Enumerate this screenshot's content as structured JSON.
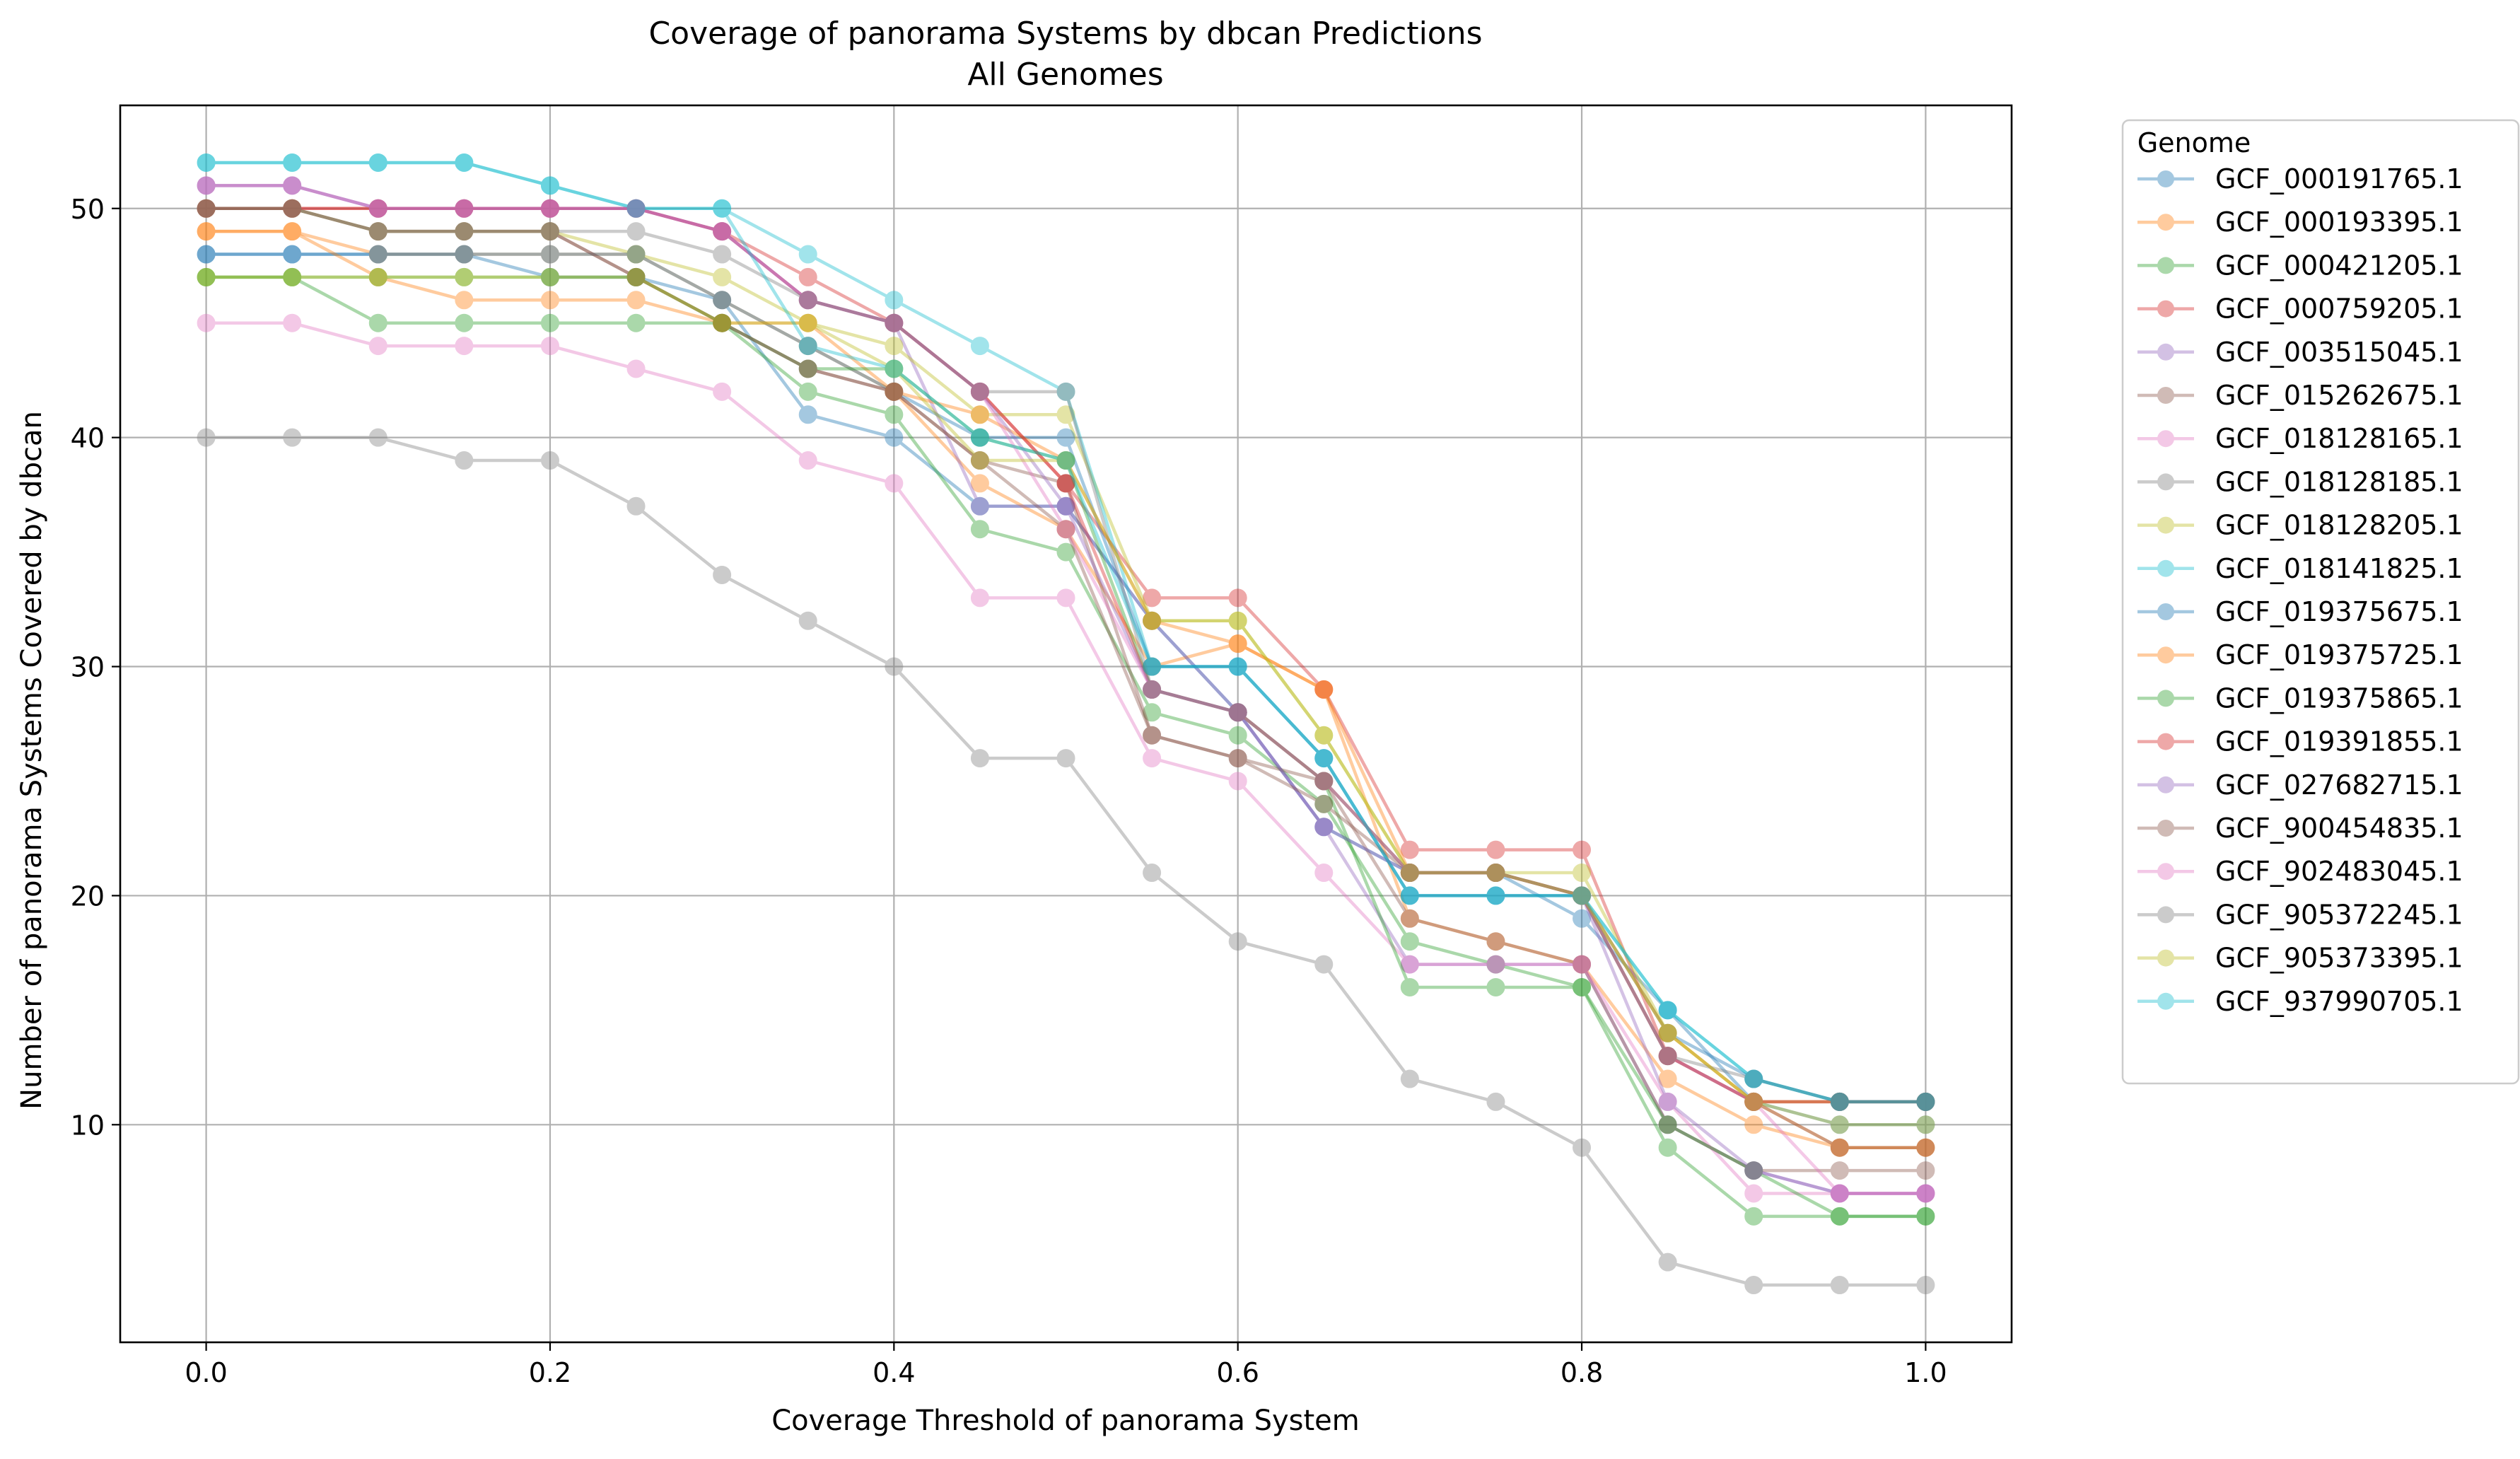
{
  "chart_data": {
    "type": "line",
    "title": "Coverage of panorama Systems by dbcan Predictions",
    "subtitle": "All Genomes",
    "xlabel": "Coverage Threshold of panorama System",
    "ylabel": "Number of panorama Systems Covered by dbcan",
    "xlim": [
      -0.05,
      1.05
    ],
    "ylim": [
      0.5,
      54.5
    ],
    "xticks": [
      0.0,
      0.2,
      0.4,
      0.6,
      0.8,
      1.0
    ],
    "xtick_labels": [
      "0.0",
      "0.2",
      "0.4",
      "0.6",
      "0.8",
      "1.0"
    ],
    "yticks": [
      10,
      20,
      30,
      40,
      50
    ],
    "ytick_labels": [
      "10",
      "20",
      "30",
      "40",
      "50"
    ],
    "grid": true,
    "legend_title": "Genome",
    "legend_position": "outside right, top",
    "x": [
      0.0,
      0.05,
      0.1,
      0.15,
      0.2,
      0.25,
      0.3,
      0.35,
      0.4,
      0.45,
      0.5,
      0.55,
      0.6,
      0.65,
      0.7,
      0.75,
      0.8,
      0.85,
      0.9,
      0.95,
      1.0
    ],
    "series": [
      {
        "name": "GCF_000191765.1",
        "color": "#1f77b4",
        "values": [
          48,
          48,
          48,
          48,
          47,
          47,
          46,
          41,
          40,
          37,
          37,
          32,
          28,
          23,
          21,
          21,
          19,
          15,
          11,
          10,
          10
        ]
      },
      {
        "name": "GCF_000193395.1",
        "color": "#ff7f0e",
        "values": [
          49,
          49,
          48,
          48,
          48,
          48,
          46,
          44,
          42,
          38,
          36,
          30,
          31,
          29,
          19,
          18,
          17,
          12,
          10,
          9,
          9
        ]
      },
      {
        "name": "GCF_000421205.1",
        "color": "#2ca02c",
        "values": [
          47,
          47,
          45,
          45,
          45,
          45,
          45,
          42,
          41,
          36,
          35,
          28,
          27,
          24,
          18,
          17,
          16,
          9,
          6,
          6,
          6
        ]
      },
      {
        "name": "GCF_000759205.1",
        "color": "#d62728",
        "values": [
          50,
          50,
          50,
          50,
          50,
          50,
          49,
          47,
          45,
          42,
          38,
          33,
          33,
          29,
          22,
          22,
          22,
          13,
          11,
          11,
          11
        ]
      },
      {
        "name": "GCF_003515045.1",
        "color": "#9467bd",
        "values": [
          51,
          51,
          50,
          50,
          50,
          50,
          49,
          46,
          45,
          37,
          37,
          32,
          28,
          23,
          17,
          17,
          17,
          10,
          8,
          7,
          7
        ]
      },
      {
        "name": "GCF_015262675.1",
        "color": "#8c564b",
        "values": [
          50,
          50,
          49,
          49,
          49,
          47,
          45,
          43,
          42,
          39,
          38,
          27,
          26,
          25,
          19,
          18,
          17,
          10,
          8,
          8,
          8
        ]
      },
      {
        "name": "GCF_018128165.1",
        "color": "#e377c2",
        "values": [
          45,
          45,
          44,
          44,
          44,
          43,
          42,
          39,
          38,
          33,
          33,
          26,
          25,
          21,
          17,
          17,
          17,
          11,
          7,
          7,
          7
        ]
      },
      {
        "name": "GCF_018128185.1",
        "color": "#7f7f7f",
        "values": [
          40,
          40,
          40,
          39,
          39,
          37,
          34,
          32,
          30,
          26,
          26,
          21,
          18,
          17,
          12,
          11,
          9,
          4,
          3,
          3,
          3
        ]
      },
      {
        "name": "GCF_018128205.1",
        "color": "#bcbd22",
        "values": [
          50,
          50,
          49,
          49,
          49,
          48,
          47,
          45,
          44,
          41,
          41,
          32,
          32,
          27,
          21,
          21,
          21,
          14,
          11,
          11,
          11
        ]
      },
      {
        "name": "GCF_018141825.1",
        "color": "#17becf",
        "values": [
          52,
          52,
          52,
          52,
          51,
          50,
          50,
          48,
          46,
          44,
          42,
          30,
          30,
          26,
          20,
          20,
          20,
          15,
          12,
          11,
          11
        ]
      },
      {
        "name": "GCF_019375675.1",
        "color": "#1f77b4",
        "values": [
          48,
          48,
          48,
          48,
          48,
          48,
          46,
          44,
          42,
          40,
          40,
          30,
          30,
          26,
          20,
          20,
          20,
          14,
          12,
          11,
          11
        ]
      },
      {
        "name": "GCF_019375725.1",
        "color": "#ff7f0e",
        "values": [
          49,
          49,
          47,
          46,
          46,
          46,
          45,
          45,
          42,
          41,
          39,
          32,
          31,
          29,
          21,
          21,
          20,
          14,
          11,
          9,
          9
        ]
      },
      {
        "name": "GCF_019375865.1",
        "color": "#2ca02c",
        "values": [
          47,
          47,
          47,
          47,
          47,
          47,
          45,
          43,
          43,
          40,
          39,
          29,
          28,
          25,
          16,
          16,
          16,
          10,
          8,
          6,
          6
        ]
      },
      {
        "name": "GCF_019391855.1",
        "color": "#d62728",
        "values": [
          50,
          50,
          50,
          50,
          50,
          50,
          49,
          46,
          45,
          42,
          38,
          29,
          28,
          25,
          21,
          21,
          20,
          13,
          11,
          11,
          11
        ]
      },
      {
        "name": "GCF_027682715.1",
        "color": "#9467bd",
        "values": [
          51,
          51,
          50,
          50,
          50,
          50,
          49,
          46,
          45,
          42,
          37,
          29,
          28,
          23,
          21,
          21,
          20,
          11,
          8,
          7,
          7
        ]
      },
      {
        "name": "GCF_900454835.1",
        "color": "#8c564b",
        "values": [
          50,
          50,
          49,
          49,
          49,
          47,
          45,
          43,
          42,
          39,
          36,
          27,
          26,
          24,
          21,
          21,
          20,
          13,
          11,
          9,
          9
        ]
      },
      {
        "name": "GCF_902483045.1",
        "color": "#e377c2",
        "values": [
          51,
          51,
          50,
          50,
          50,
          50,
          49,
          46,
          45,
          42,
          36,
          29,
          28,
          25,
          21,
          21,
          20,
          13,
          11,
          7,
          7
        ]
      },
      {
        "name": "GCF_905372245.1",
        "color": "#7f7f7f",
        "values": [
          50,
          50,
          49,
          49,
          49,
          49,
          48,
          46,
          45,
          42,
          42,
          29,
          28,
          25,
          21,
          21,
          20,
          13,
          12,
          11,
          11
        ]
      },
      {
        "name": "GCF_905373395.1",
        "color": "#bcbd22",
        "values": [
          47,
          47,
          47,
          47,
          47,
          47,
          45,
          45,
          43,
          39,
          39,
          32,
          32,
          27,
          21,
          21,
          20,
          14,
          11,
          10,
          10
        ]
      },
      {
        "name": "GCF_937990705.1",
        "color": "#17becf",
        "values": [
          52,
          52,
          52,
          52,
          51,
          50,
          50,
          44,
          43,
          40,
          39,
          30,
          30,
          26,
          20,
          20,
          20,
          15,
          12,
          11,
          11
        ]
      }
    ]
  }
}
